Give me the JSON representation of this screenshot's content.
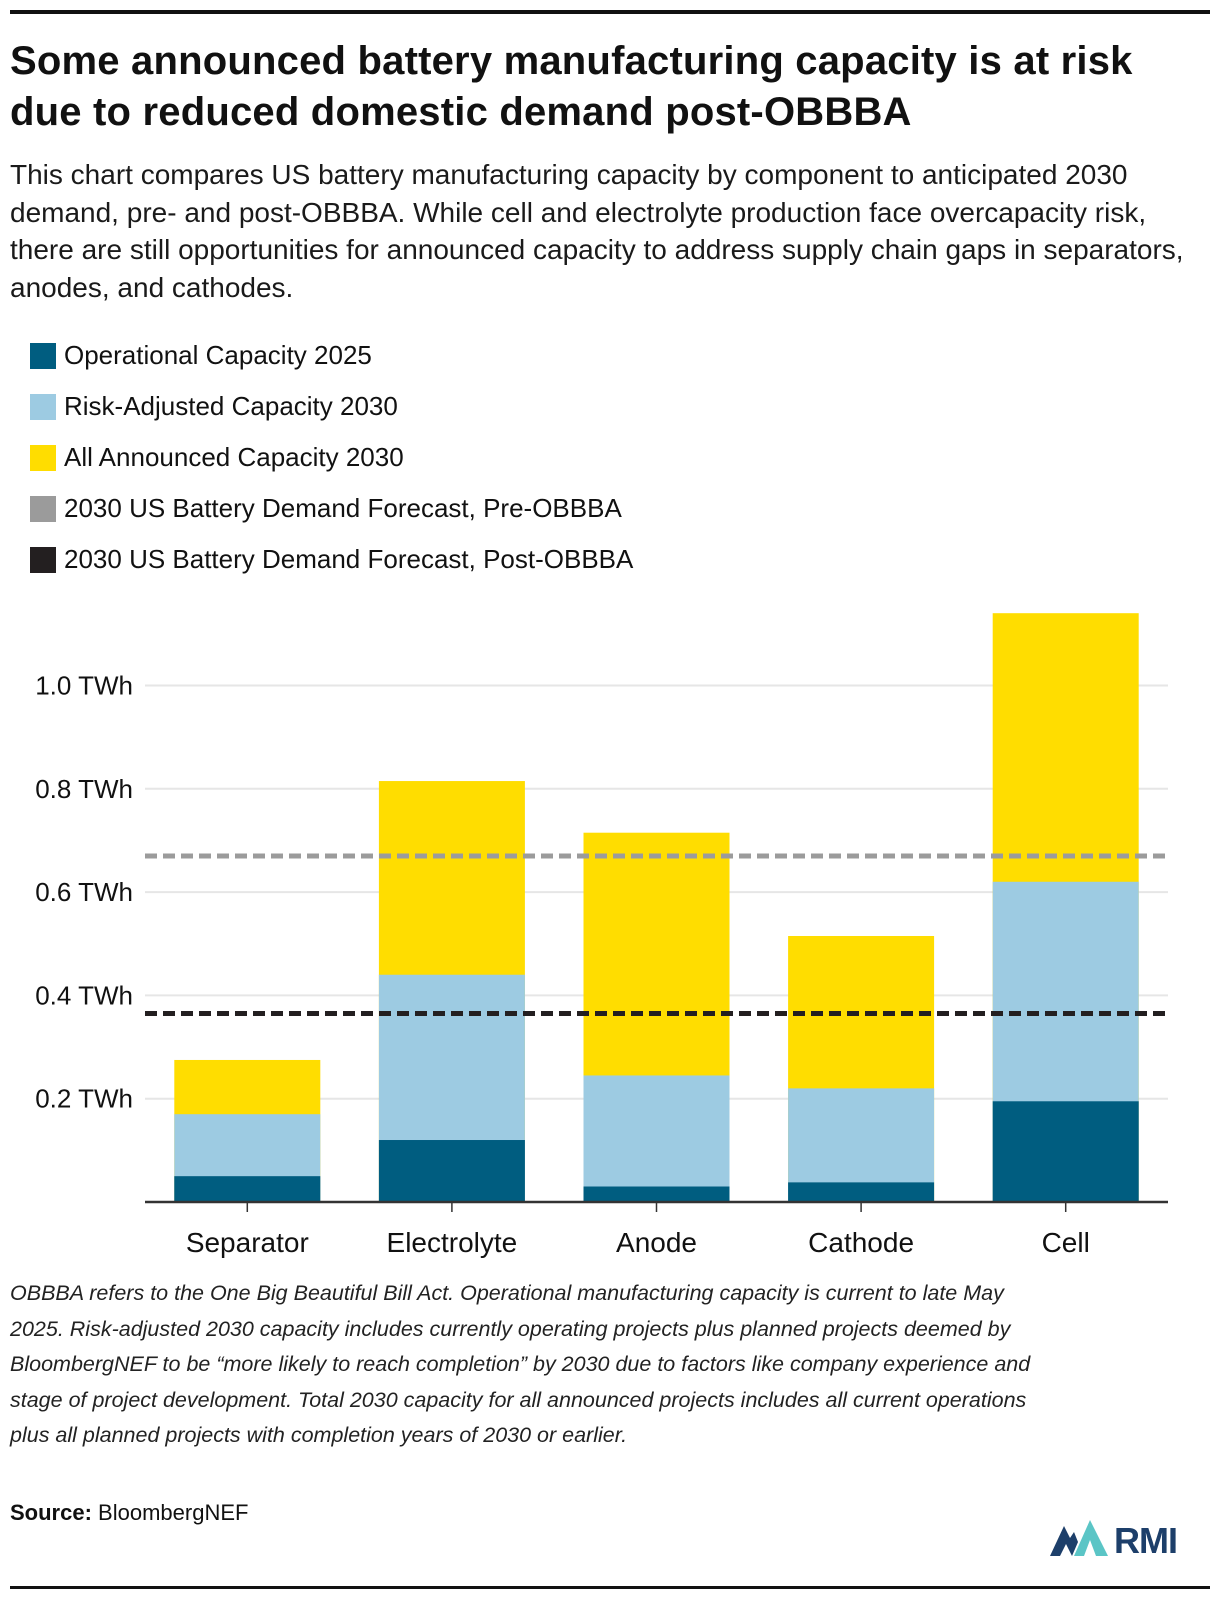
{
  "title": "Some announced battery manufacturing capacity is at risk due to reduced domestic demand post-OBBBA",
  "subtitle": "This chart compares US battery manufacturing capacity by component to anticipated 2030 demand, pre- and post-OBBBA. While cell and electrolyte production face overcapacity risk, there are still opportunities for announced capacity to address supply chain gaps in separators, anodes, and cathodes.",
  "legend": [
    {
      "label": "Operational Capacity 2025",
      "color": "#005d80"
    },
    {
      "label": "Risk-Adjusted Capacity 2030",
      "color": "#9dcbe2"
    },
    {
      "label": "All Announced Capacity 2030",
      "color": "#ffdd00"
    },
    {
      "label": "2030 US Battery Demand Forecast, Pre-OBBBA",
      "color": "#9b9b9b"
    },
    {
      "label": "2030 US Battery Demand Forecast, Post-OBBBA",
      "color": "#231f20"
    }
  ],
  "footnote": "OBBBA refers to the One Big Beautiful Bill Act. Operational manufacturing capacity is current to late May 2025. Risk-adjusted 2030 capacity includes currently operating projects plus planned projects deemed by BloombergNEF to be “more likely to reach completion” by 2030 due to factors like company experience and stage of project development. Total 2030 capacity for all announced projects includes all current operations plus all planned projects with completion years of 2030 or earlier.",
  "source": {
    "label": "Source:",
    "value": "BloombergNEF"
  },
  "logo": {
    "text": "RMI",
    "colors": [
      "#1d3f6a",
      "#5bc5c6"
    ]
  },
  "chart_data": {
    "type": "bar",
    "stacking": "overlapping totals (each series is a cumulative total drawn from zero)",
    "title": "Some announced battery manufacturing capacity is at risk due to reduced domestic demand post-OBBBA",
    "xlabel": "",
    "ylabel": "",
    "unit": "TWh",
    "categories": [
      "Separator",
      "Electrolyte",
      "Anode",
      "Cathode",
      "Cell"
    ],
    "series": [
      {
        "name": "Operational Capacity 2025",
        "color": "#005d80",
        "values": [
          0.05,
          0.12,
          0.03,
          0.038,
          0.195
        ]
      },
      {
        "name": "Risk-Adjusted Capacity 2030",
        "color": "#9dcbe2",
        "values": [
          0.17,
          0.44,
          0.245,
          0.22,
          0.62
        ]
      },
      {
        "name": "All Announced Capacity 2030",
        "color": "#ffdd00",
        "values": [
          0.275,
          0.815,
          0.715,
          0.515,
          1.14
        ]
      }
    ],
    "reference_lines": [
      {
        "name": "2030 US Battery Demand Forecast, Pre-OBBBA",
        "value": 0.67,
        "color": "#9b9b9b",
        "style": "dashed"
      },
      {
        "name": "2030 US Battery Demand Forecast, Post-OBBBA",
        "value": 0.365,
        "color": "#231f20",
        "style": "dashed"
      }
    ],
    "yticks": [
      0.2,
      0.4,
      0.6,
      0.8,
      1.0
    ],
    "ytick_labels": [
      "0.2 TWh",
      "0.4 TWh",
      "0.6 TWh",
      "0.8 TWh",
      "1.0 TWh"
    ],
    "ylim": [
      0,
      1.17
    ],
    "grid": true,
    "legend_position": "top-left"
  }
}
